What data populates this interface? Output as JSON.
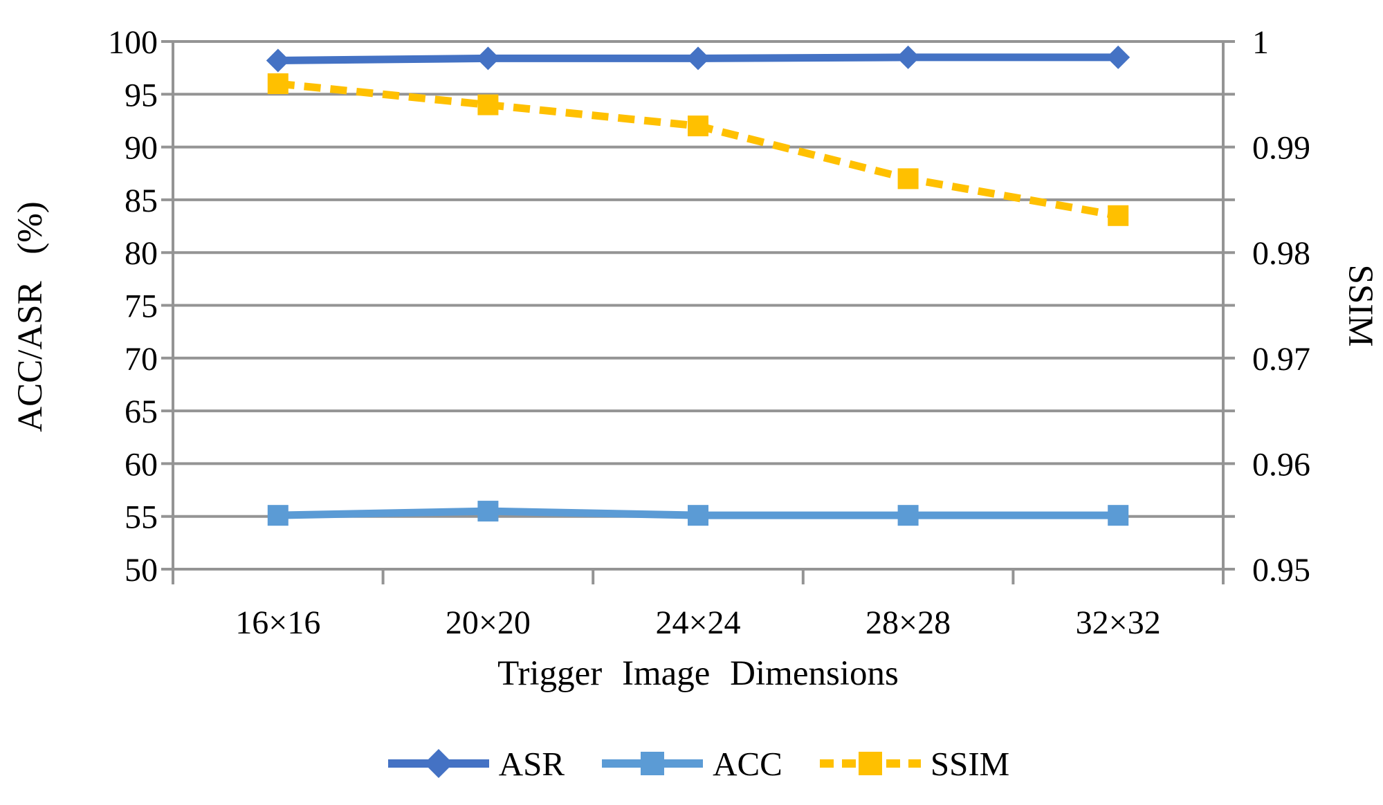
{
  "chart_data": {
    "type": "line",
    "categories": [
      "16×16",
      "20×20",
      "24×24",
      "28×28",
      "32×32"
    ],
    "xlabel": "Trigger Image Dimensions",
    "ylabel_left": "ACC/ASR (%)",
    "ylabel_right": "SSIM",
    "left_axis": {
      "min": 50,
      "max": 100,
      "step": 5,
      "tick_labels": [
        "100",
        "95",
        "90",
        "85",
        "80",
        "75",
        "70",
        "65",
        "60",
        "55",
        "50"
      ]
    },
    "right_axis": {
      "min": 0.95,
      "max": 1,
      "step": 0.01,
      "tick_labels": [
        "1",
        "0.99",
        "0.98",
        "0.97",
        "0.96",
        "0.95"
      ]
    },
    "grid": "horizontal",
    "legend_position": "bottom",
    "series": [
      {
        "name": "ASR",
        "axis": "left",
        "style": "solid",
        "marker": "diamond",
        "color": "#4472C4",
        "values": [
          98.2,
          98.4,
          98.4,
          98.5,
          98.5
        ]
      },
      {
        "name": "ACC",
        "axis": "left",
        "style": "solid",
        "marker": "square",
        "color": "#5B9BD5",
        "values": [
          55.1,
          55.5,
          55.1,
          55.1,
          55.1
        ]
      },
      {
        "name": "SSIM",
        "axis": "right",
        "style": "dashed",
        "marker": "square",
        "color": "#FFC000",
        "values": [
          0.996,
          0.994,
          0.992,
          0.987,
          0.9835
        ]
      }
    ]
  },
  "colors": {
    "gridline": "#949494",
    "axis": "#949494",
    "text": "#000000",
    "background": "#FFFFFF"
  }
}
